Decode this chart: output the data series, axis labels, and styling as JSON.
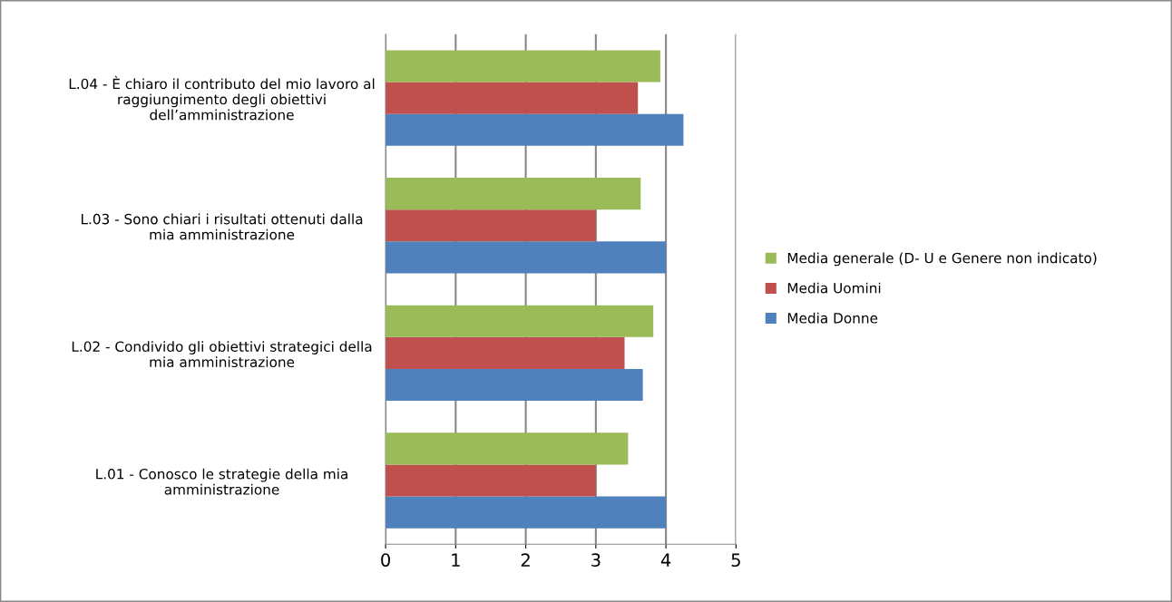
{
  "chart_data": {
    "type": "bar",
    "orientation": "horizontal",
    "categories": [
      "L.04 - È chiaro il contributo del mio lavoro al\nraggiungimento degli obiettivi\ndell’amministrazione",
      "L.03 - Sono chiari i risultati ottenuti dalla\nmia amministrazione",
      "L.02 - Condivido gli obiettivi strategici della\nmia amministrazione",
      "L.01 - Conosco le strategie della mia\namministrazione"
    ],
    "series": [
      {
        "name": "Media Donne",
        "color": "#4f81bd",
        "values": [
          4.25,
          4.0,
          3.67,
          4.0
        ]
      },
      {
        "name": "Media Uomini",
        "color": "#c0504d",
        "values": [
          3.6,
          3.0,
          3.41,
          3.0
        ]
      },
      {
        "name": "Media generale (D- U e Genere non indicato)",
        "color": "#9bbb59",
        "values": [
          3.92,
          3.64,
          3.82,
          3.46
        ]
      }
    ],
    "xlim": [
      0,
      5
    ],
    "xticks": [
      0,
      1,
      2,
      3,
      4,
      5
    ],
    "grid": "x",
    "legend": "right"
  }
}
